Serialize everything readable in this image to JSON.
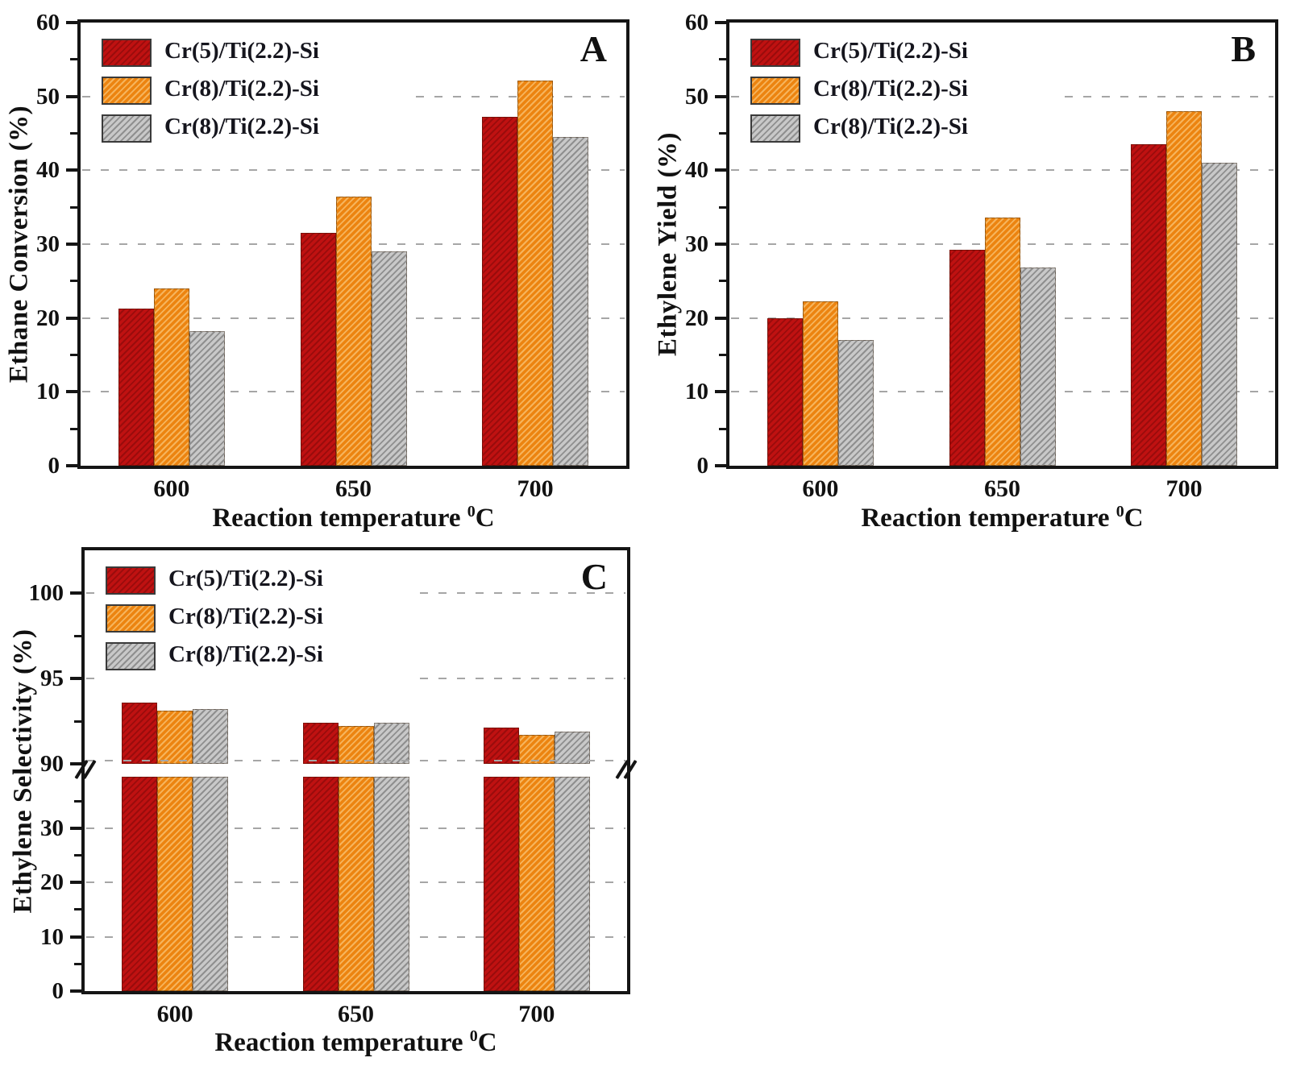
{
  "colors": {
    "series_red": "#bf1111",
    "series_red_hatch": "#9a0c0c",
    "series_orange": "#ec8410",
    "series_orange_hatch": "#f6b45c",
    "series_gray": "#c8c8c8",
    "series_gray_hatch": "#8f8f8f",
    "gridline": "#a6a6a6",
    "axis": "#151515"
  },
  "chart_data": [
    {
      "type": "bar",
      "panel_label": "A",
      "ylabel": "Ethane Conversion  (%)",
      "xlabel": "Reaction temperature",
      "xlabel_sup": "0",
      "xlabel_unit": "C",
      "categories": [
        "600",
        "650",
        "700"
      ],
      "series": [
        {
          "name": "Cr(5)/Ti(2.2)-Si",
          "color": "#bf1111",
          "hatch": "#9a0c0c",
          "values": [
            21.3,
            31.5,
            47.2
          ]
        },
        {
          "name": "Cr(8)/Ti(2.2)-Si",
          "color": "#ec8410",
          "hatch": "#f6b45c",
          "values": [
            24.0,
            36.4,
            52.2
          ]
        },
        {
          "name": "Cr(8)/Ti(2.2)-Si",
          "color": "#c8c8c8",
          "hatch": "#8f8f8f",
          "values": [
            18.2,
            29.0,
            44.5
          ]
        }
      ],
      "ylim": [
        0,
        60
      ],
      "ytick_values": [
        0,
        10,
        20,
        30,
        40,
        50,
        60
      ],
      "yminor_values": [
        5,
        15,
        25,
        35,
        45,
        55
      ],
      "grid_values": [
        10,
        20,
        30,
        40,
        50
      ],
      "grid": "dashed",
      "legend_position": "top-left"
    },
    {
      "type": "bar",
      "panel_label": "B",
      "ylabel": "Ethylene Yield  (%)",
      "xlabel": "Reaction temperature",
      "xlabel_sup": "0",
      "xlabel_unit": "C",
      "categories": [
        "600",
        "650",
        "700"
      ],
      "series": [
        {
          "name": "Cr(5)/Ti(2.2)-Si",
          "color": "#bf1111",
          "hatch": "#9a0c0c",
          "values": [
            20.0,
            29.2,
            43.5
          ]
        },
        {
          "name": "Cr(8)/Ti(2.2)-Si",
          "color": "#ec8410",
          "hatch": "#f6b45c",
          "values": [
            22.3,
            33.6,
            48.0
          ]
        },
        {
          "name": "Cr(8)/Ti(2.2)-Si",
          "color": "#c8c8c8",
          "hatch": "#8f8f8f",
          "values": [
            17.0,
            26.8,
            41.0
          ]
        }
      ],
      "ylim": [
        0,
        60
      ],
      "ytick_values": [
        0,
        10,
        20,
        30,
        40,
        50,
        60
      ],
      "yminor_values": [
        5,
        15,
        25,
        35,
        45,
        55
      ],
      "grid_values": [
        10,
        20,
        30,
        40,
        50
      ],
      "grid": "dashed",
      "legend_position": "top-left"
    },
    {
      "type": "bar",
      "panel_label": "C",
      "ylabel": "Ethylene Selectivity  (%)",
      "xlabel": "Reaction temperature",
      "xlabel_sup": "0",
      "xlabel_unit": "C",
      "categories": [
        "600",
        "650",
        "700"
      ],
      "series": [
        {
          "name": "Cr(5)/Ti(2.2)-Si",
          "color": "#bf1111",
          "hatch": "#9a0c0c",
          "values": [
            93.6,
            92.4,
            92.1
          ]
        },
        {
          "name": "Cr(8)/Ti(2.2)-Si",
          "color": "#ec8410",
          "hatch": "#f6b45c",
          "values": [
            93.1,
            92.2,
            91.7
          ]
        },
        {
          "name": "Cr(8)/Ti(2.2)-Si",
          "color": "#c8c8c8",
          "hatch": "#8f8f8f",
          "values": [
            93.2,
            92.4,
            91.9
          ]
        }
      ],
      "axis_break": {
        "upper_min": 90,
        "upper_max": 102.5,
        "upper_ticks": [
          90,
          95,
          100
        ],
        "upper_minor": [
          92.5,
          97.5
        ],
        "lower_min": 0,
        "lower_max": 39.5,
        "lower_ticks": [
          0,
          10,
          20,
          30
        ],
        "lower_minor": [
          5,
          15,
          25,
          35
        ],
        "grid_upper": [
          90,
          95,
          100
        ],
        "grid_lower": [
          10,
          20,
          30
        ]
      },
      "grid": "dashed",
      "legend_position": "top-left"
    }
  ]
}
